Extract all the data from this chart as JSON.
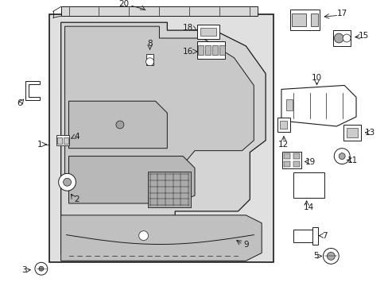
{
  "bg": "#ffffff",
  "lc": "#1a1a1a",
  "panel_fill": "#e0e0e0",
  "figsize": [
    4.89,
    3.6
  ],
  "dpi": 100
}
